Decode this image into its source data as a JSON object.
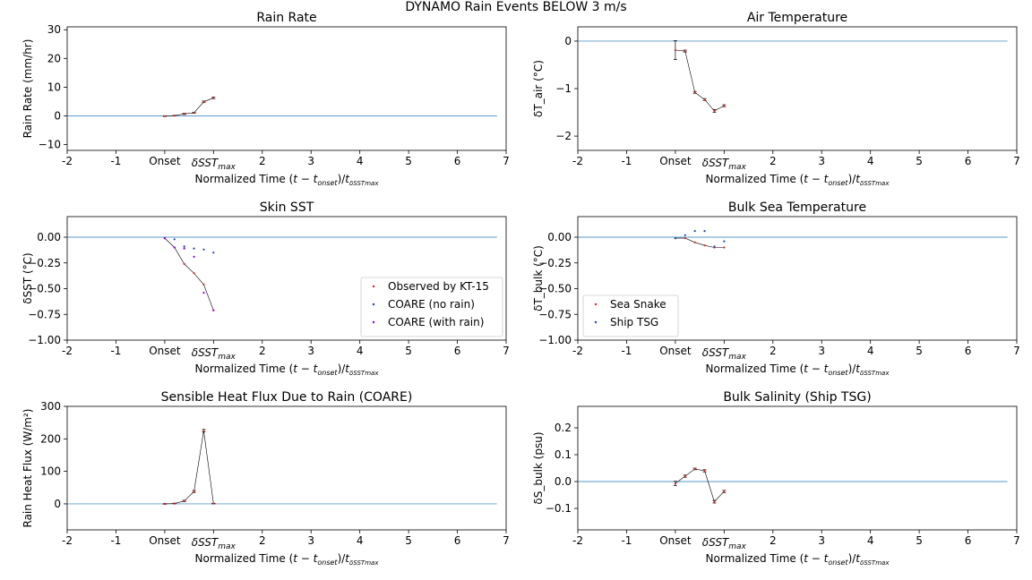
{
  "figure_title": "DYNAMO Rain Events BELOW 3 m/s",
  "colors": {
    "zero_line": "#1f77b4",
    "trace": "#000000",
    "primary_marker": "#d62728",
    "secondary_marker": "#1f3fbf",
    "tertiary_marker": "#9400d3"
  },
  "chart_data": [
    {
      "type": "line",
      "title": "Rain Rate",
      "ylabel": "Rain Rate (mm/hr)",
      "xlabel": "Normalized Time (t − t_onset)/t_δSST_max",
      "xlim": [
        -2,
        7
      ],
      "ylim": [
        -12,
        31
      ],
      "yticks": [
        -10,
        0,
        10,
        20,
        30
      ],
      "ytick_labels": [
        "−10",
        "0",
        "10",
        "20",
        "30"
      ],
      "xtick_labels": [
        "-2",
        "-1",
        "Onset",
        "δSST_max",
        "2",
        "3",
        "4",
        "5",
        "6",
        "7"
      ],
      "series": [
        {
          "x": [
            0,
            0.2,
            0.4,
            0.6,
            0.8,
            1.0
          ],
          "y": [
            -0.1,
            0.1,
            0.7,
            1.1,
            4.9,
            6.3
          ],
          "err": [
            0.1,
            0.1,
            0.2,
            0.2,
            0.3,
            0.3
          ]
        }
      ]
    },
    {
      "type": "line",
      "title": "Air Temperature",
      "ylabel": "δT_air (°C)",
      "xlabel": "Normalized Time (t − t_onset)/t_δSST_max",
      "xlim": [
        -2,
        7
      ],
      "ylim": [
        -2.3,
        0.3
      ],
      "yticks": [
        0,
        -1,
        -2
      ],
      "ytick_labels": [
        "0",
        "−1",
        "−2"
      ],
      "xtick_labels": [
        "-2",
        "-1",
        "Onset",
        "δSST_max",
        "2",
        "3",
        "4",
        "5",
        "6",
        "7"
      ],
      "series": [
        {
          "x": [
            0,
            0.2,
            0.4,
            0.6,
            0.8,
            1.0
          ],
          "y": [
            -0.19,
            -0.21,
            -1.08,
            -1.23,
            -1.47,
            -1.36
          ],
          "err": [
            0.2,
            0.02,
            0.02,
            0.02,
            0.03,
            0.02
          ]
        }
      ]
    },
    {
      "type": "scatter",
      "title": "Skin SST",
      "ylabel": "δSST (°C)",
      "xlabel": "Normalized Time (t − t_onset)/t_δSST_max",
      "xlim": [
        -2,
        7
      ],
      "ylim": [
        -1.0,
        0.2
      ],
      "yticks": [
        0.0,
        -0.25,
        -0.5,
        -0.75,
        -1.0
      ],
      "ytick_labels": [
        "0.00",
        "−0.25",
        "−0.50",
        "−0.75",
        "−1.00"
      ],
      "xtick_labels": [
        "-2",
        "-1",
        "Onset",
        "δSST_max",
        "2",
        "3",
        "4",
        "5",
        "6",
        "7"
      ],
      "legend": [
        "Observed by KT-15",
        "COARE (no rain)",
        "COARE (with rain)"
      ],
      "legend_loc": "lower right",
      "series": [
        {
          "name": "Observed by KT-15",
          "x": [
            0,
            0.2,
            0.4,
            0.6,
            0.8,
            1.0
          ],
          "y": [
            -0.01,
            -0.1,
            -0.26,
            -0.35,
            -0.46,
            -0.71
          ],
          "line": true
        },
        {
          "name": "COARE (no rain)",
          "x": [
            0,
            0.2,
            0.4,
            0.6,
            0.8,
            1.0
          ],
          "y": [
            -0.01,
            -0.02,
            -0.09,
            -0.11,
            -0.12,
            -0.15
          ],
          "line": false
        },
        {
          "name": "COARE (with rain)",
          "x": [
            0,
            0.2,
            0.4,
            0.6,
            0.8,
            1.0
          ],
          "y": [
            -0.01,
            -0.1,
            -0.11,
            -0.19,
            -0.54,
            -0.71
          ],
          "line": false
        }
      ]
    },
    {
      "type": "scatter",
      "title": "Bulk Sea Temperature",
      "ylabel": "δT_bulk (°C)",
      "xlabel": "Normalized Time (t − t_onset)/t_δSST_max",
      "xlim": [
        -2,
        7
      ],
      "ylim": [
        -1.0,
        0.2
      ],
      "yticks": [
        0.0,
        -0.25,
        -0.5,
        -0.75,
        -1.0
      ],
      "ytick_labels": [
        "0.00",
        "−0.25",
        "−0.50",
        "−0.75",
        "−1.00"
      ],
      "xtick_labels": [
        "-2",
        "-1",
        "Onset",
        "δSST_max",
        "2",
        "3",
        "4",
        "5",
        "6",
        "7"
      ],
      "legend": [
        "Sea Snake",
        "Ship TSG"
      ],
      "legend_loc": "lower left",
      "series": [
        {
          "name": "Sea Snake",
          "x": [
            0,
            0.2,
            0.4,
            0.6,
            0.8,
            1.0
          ],
          "y": [
            -0.01,
            -0.01,
            -0.05,
            -0.08,
            -0.1,
            -0.1
          ],
          "line": true
        },
        {
          "name": "Ship TSG",
          "x": [
            0,
            0.2,
            0.4,
            0.6,
            0.8,
            1.0
          ],
          "y": [
            -0.01,
            0.02,
            0.06,
            0.06,
            -0.09,
            -0.04
          ],
          "line": false
        }
      ]
    },
    {
      "type": "line",
      "title": "Sensible Heat Flux Due to Rain (COARE)",
      "ylabel": "Rain Heat Flux (W/m²)",
      "xlabel": "Normalized Time (t − t_onset)/t_δSST_max",
      "xlim": [
        -2,
        7
      ],
      "ylim": [
        -80,
        300
      ],
      "yticks": [
        0,
        100,
        200,
        300
      ],
      "ytick_labels": [
        "0",
        "100",
        "200",
        "300"
      ],
      "xtick_labels": [
        "-2",
        "-1",
        "Onset",
        "δSST_max",
        "2",
        "3",
        "4",
        "5",
        "6",
        "7"
      ],
      "series": [
        {
          "x": [
            0,
            0.2,
            0.4,
            0.6,
            0.8,
            1.0
          ],
          "y": [
            0,
            1,
            9,
            38,
            225,
            1
          ],
          "err": [
            1,
            1,
            2,
            3,
            4,
            1
          ]
        }
      ]
    },
    {
      "type": "line",
      "title": "Bulk Salinity (Ship TSG)",
      "ylabel": "δS_bulk (psu)",
      "xlabel": "Normalized Time (t − t_onset)/t_δSST_max",
      "xlim": [
        -2,
        7
      ],
      "ylim": [
        -0.18,
        0.28
      ],
      "yticks": [
        -0.1,
        0.0,
        0.1,
        0.2
      ],
      "ytick_labels": [
        "−0.1",
        "0.0",
        "0.1",
        "0.2"
      ],
      "xtick_labels": [
        "-2",
        "-1",
        "Onset",
        "δSST_max",
        "2",
        "3",
        "4",
        "5",
        "6",
        "7"
      ],
      "series": [
        {
          "x": [
            0,
            0.2,
            0.4,
            0.6,
            0.8,
            1.0
          ],
          "y": [
            -0.007,
            0.02,
            0.047,
            0.04,
            -0.075,
            -0.037
          ],
          "err": [
            0.008,
            0.004,
            0.003,
            0.004,
            0.005,
            0.004
          ]
        }
      ]
    }
  ]
}
